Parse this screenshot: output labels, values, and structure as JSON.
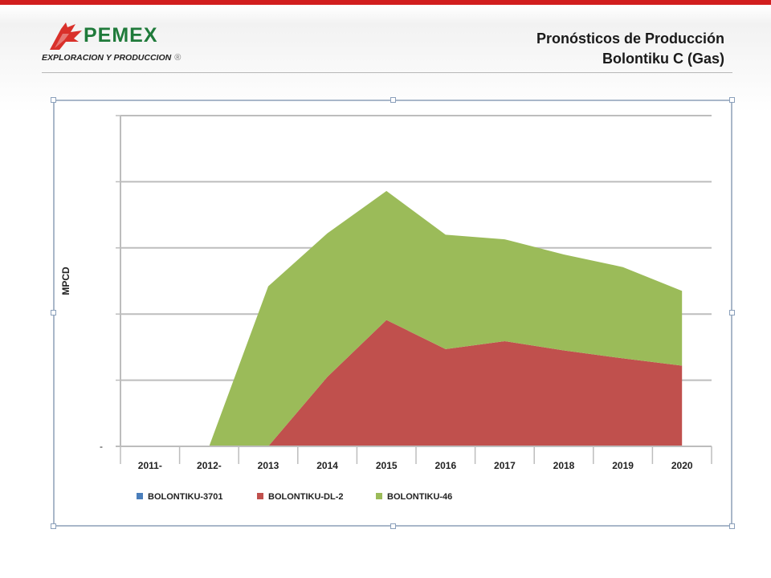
{
  "header": {
    "logo_word": "PEMEX",
    "logo_sub": "EXPLORACION Y PRODUCCION",
    "logo_reg": "®",
    "title_line1": "Pronósticos de Producción",
    "title_line2": "Bolontiku C (Gas)"
  },
  "colors": {
    "top_bar": "#d21f1f",
    "logo_red": "#d9302a",
    "logo_green": "#1f7a3a"
  },
  "chart_data": {
    "type": "area",
    "stacked": true,
    "title": "",
    "xlabel": "",
    "ylabel": "MPCD",
    "y_tick_labels": [
      "-",
      "",
      "",
      "",
      "",
      ""
    ],
    "ylim": [
      0,
      5
    ],
    "grid": true,
    "legend_position": "bottom-left",
    "categories": [
      "2011-",
      "2012-",
      "2013",
      "2014",
      "2015",
      "2016",
      "2017",
      "2018",
      "2019",
      "2020"
    ],
    "series": [
      {
        "name": "BOLONTIKU-3701",
        "color": "#4a7ebb",
        "values": [
          0,
          0,
          0,
          0,
          0,
          0,
          0,
          0,
          0,
          0
        ]
      },
      {
        "name": "BOLONTIKU-DL-2",
        "color": "#c0504d",
        "values": [
          0,
          0,
          0,
          1.05,
          1.91,
          1.47,
          1.59,
          1.45,
          1.33,
          1.22
        ]
      },
      {
        "name": "BOLONTIKU-46",
        "color": "#9bbb59",
        "values": [
          0,
          0,
          2.42,
          2.17,
          1.95,
          1.73,
          1.54,
          1.45,
          1.38,
          1.13
        ]
      }
    ]
  }
}
